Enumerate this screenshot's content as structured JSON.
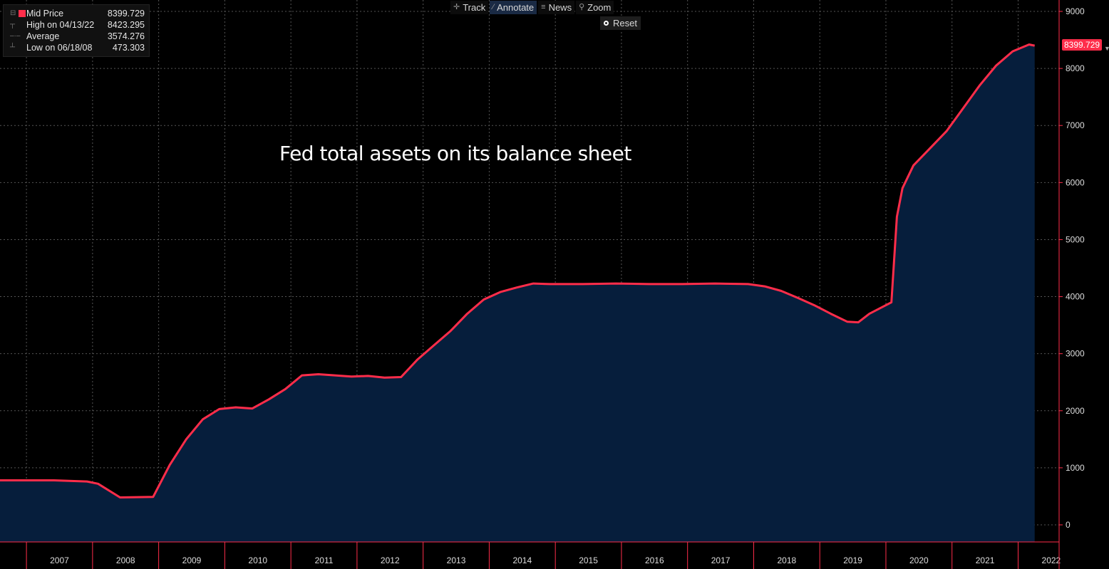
{
  "legend": {
    "rows": [
      {
        "label": "Mid Price",
        "value": "8399.729"
      },
      {
        "label": "High on 04/13/22",
        "value": "8423.295"
      },
      {
        "label": "Average",
        "value": "3574.276"
      },
      {
        "label": "Low on 06/18/08",
        "value": "473.303"
      }
    ],
    "series_color": "#ff2d4a"
  },
  "toolbar": {
    "track_label": "Track",
    "annotate_label": "Annotate",
    "news_label": "News",
    "zoom_label": "Zoom",
    "reset_label": "Reset"
  },
  "annotation_text": "Fed total assets on its balance sheet",
  "last_value_tag": "8399.729",
  "colors": {
    "line": "#ff2d4a",
    "area": "#061e3c",
    "background": "#000000",
    "axis": "#ff2d4a"
  },
  "chart_data": {
    "type": "area",
    "title": "",
    "xlabel": "",
    "ylabel": "",
    "ylim": [
      -300,
      9000
    ],
    "yticks": [
      0,
      1000,
      2000,
      3000,
      4000,
      5000,
      6000,
      7000,
      8000,
      9000
    ],
    "x_tick_labels": [
      "2007",
      "2008",
      "2009",
      "2010",
      "2011",
      "2012",
      "2013",
      "2014",
      "2015",
      "2016",
      "2017",
      "2018",
      "2019",
      "2020",
      "2021",
      "2022"
    ],
    "grid": true,
    "series": [
      {
        "x": [
          "2007-06",
          "2007-12",
          "2008-02",
          "2008-06",
          "2008-12",
          "2009-03",
          "2009-06",
          "2009-09",
          "2009-12",
          "2010-03",
          "2010-06",
          "2010-09",
          "2010-12",
          "2011-03",
          "2011-06",
          "2011-09",
          "2011-12",
          "2012-03",
          "2012-06",
          "2012-09",
          "2012-12",
          "2013-03",
          "2013-06",
          "2013-09",
          "2013-12",
          "2014-03",
          "2014-06",
          "2014-09",
          "2014-12",
          "2015-06",
          "2015-12",
          "2016-06",
          "2016-12",
          "2017-06",
          "2017-12",
          "2018-03",
          "2018-06",
          "2018-09",
          "2018-12",
          "2019-03",
          "2019-06",
          "2019-08",
          "2019-10",
          "2019-12",
          "2020-02",
          "2020-03",
          "2020-04",
          "2020-05",
          "2020-06",
          "2020-09",
          "2020-12",
          "2021-03",
          "2021-06",
          "2021-09",
          "2021-12",
          "2022-03",
          "2022-04"
        ],
        "values": [
          780,
          760,
          720,
          480,
          490,
          1050,
          1500,
          1850,
          2030,
          2060,
          2040,
          2200,
          2380,
          2620,
          2640,
          2620,
          2600,
          2610,
          2580,
          2590,
          2900,
          3150,
          3400,
          3700,
          3950,
          4080,
          4160,
          4230,
          4220,
          4220,
          4230,
          4220,
          4220,
          4230,
          4220,
          4180,
          4100,
          3980,
          3850,
          3700,
          3560,
          3550,
          3700,
          3800,
          3900,
          5400,
          5900,
          6100,
          6300,
          6600,
          6900,
          7300,
          7700,
          8050,
          8300,
          8420,
          8400
        ]
      }
    ]
  }
}
